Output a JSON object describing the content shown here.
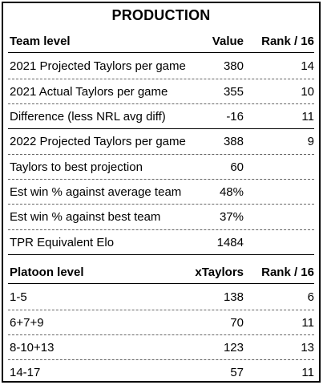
{
  "title": "PRODUCTION",
  "team_section": {
    "headers": {
      "label": "Team level",
      "value": "Value",
      "rank": "Rank / 16"
    },
    "rows": [
      {
        "label": "2021 Projected Taylors per game",
        "value": "380",
        "rank": "14"
      },
      {
        "label": "2021 Actual Taylors per game",
        "value": "355",
        "rank": "10"
      },
      {
        "label": "Difference (less NRL avg diff)",
        "value": "-16",
        "rank": "11"
      },
      {
        "label": "2022 Projected Taylors per game",
        "value": "388",
        "rank": "9"
      },
      {
        "label": "Taylors to best projection",
        "value": "60",
        "rank": ""
      },
      {
        "label": "Est win % against average team",
        "value": "48%",
        "rank": ""
      },
      {
        "label": "Est win % against best team",
        "value": "37%",
        "rank": ""
      },
      {
        "label": "TPR Equivalent Elo",
        "value": "1484",
        "rank": ""
      }
    ]
  },
  "platoon_section": {
    "headers": {
      "label": "Platoon level",
      "value": "xTaylors",
      "rank": "Rank / 16"
    },
    "rows": [
      {
        "label": "1-5",
        "value": "138",
        "rank": "6"
      },
      {
        "label": "6+7+9",
        "value": "70",
        "rank": "11"
      },
      {
        "label": "8-10+13",
        "value": "123",
        "rank": "13"
      },
      {
        "label": "14-17",
        "value": "57",
        "rank": "11"
      }
    ]
  }
}
